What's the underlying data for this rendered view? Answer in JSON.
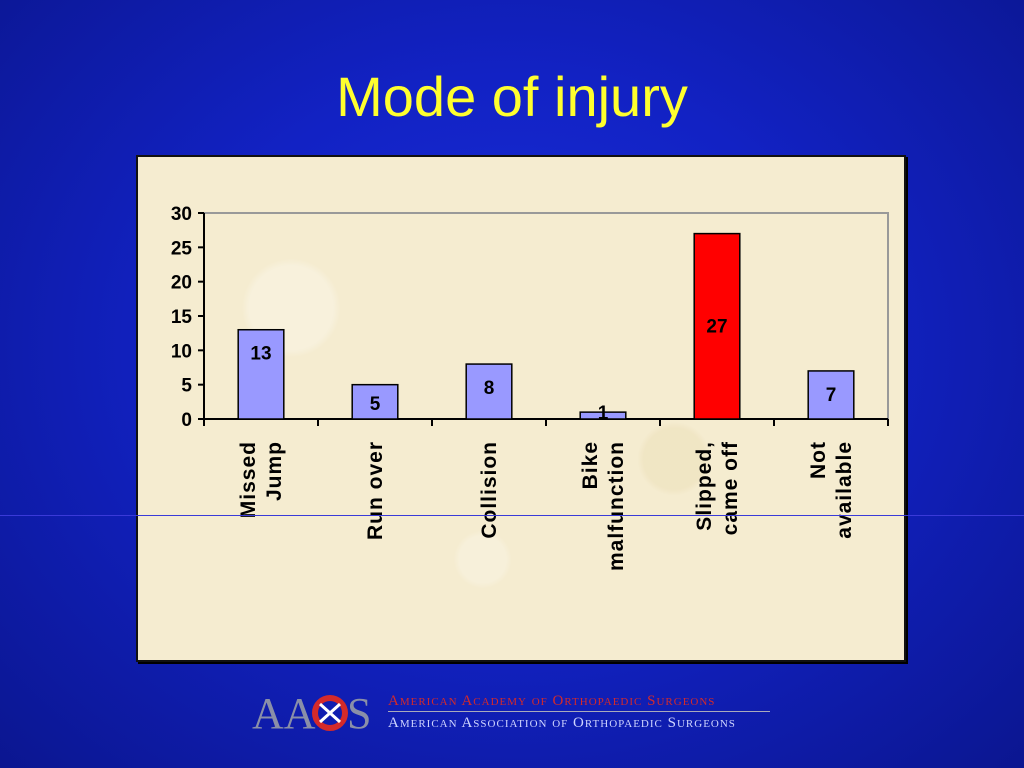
{
  "slide": {
    "title": "Mode of injury"
  },
  "chart_data": {
    "type": "bar",
    "title": "",
    "xlabel": "",
    "ylabel": "",
    "categories": [
      [
        "Missed",
        "Jump"
      ],
      [
        "Run over"
      ],
      [
        "Collision"
      ],
      [
        "Bike",
        "malfunction"
      ],
      [
        "Slipped,",
        "came off"
      ],
      [
        "Not",
        "available"
      ]
    ],
    "values": [
      13,
      5,
      8,
      1,
      27,
      7
    ],
    "bar_colors": [
      "#9999ff",
      "#9999ff",
      "#9999ff",
      "#9999ff",
      "#ff0000",
      "#9999ff"
    ],
    "ylim": [
      0,
      30
    ],
    "yticks": [
      0,
      5,
      10,
      15,
      20,
      25,
      30
    ],
    "grid": false,
    "legend": "none"
  },
  "footer": {
    "logo_letters": "AAOS",
    "org_primary": "American Academy of Orthopaedic Surgeons",
    "org_secondary": "American Association of Orthopaedic Surgeons",
    "colors": {
      "logo_gray": "#8a8fa8",
      "logo_red": "#d42a2a"
    }
  }
}
